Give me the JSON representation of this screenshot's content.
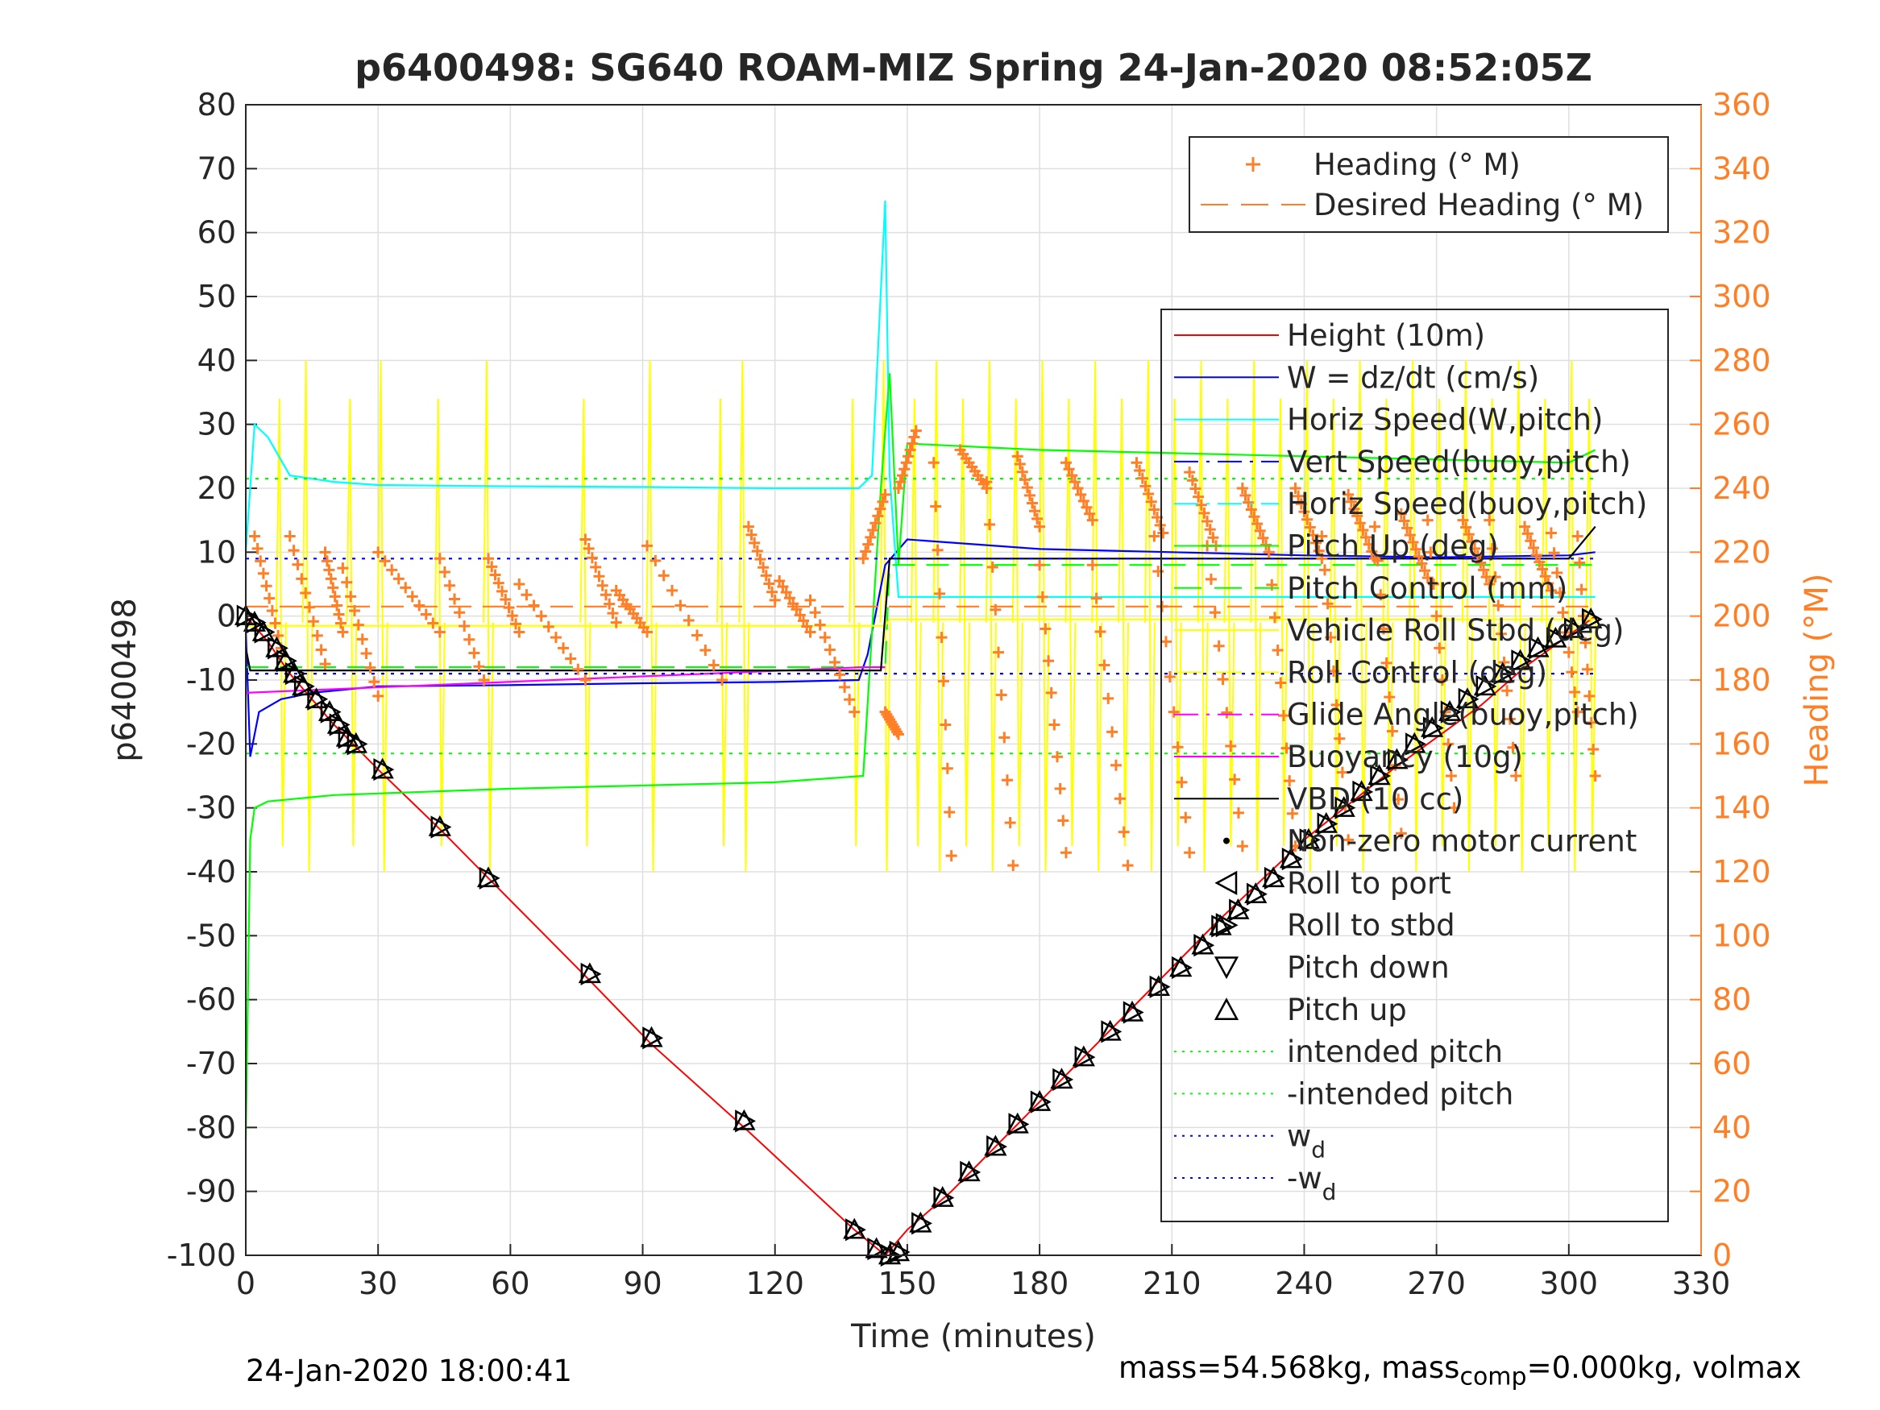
{
  "chart_data": {
    "type": "line",
    "title": "p6400498: SG640 ROAM-MIZ Spring 24-Jan-2020 08:52:05Z",
    "xlabel": "Time (minutes)",
    "ylabel": "p6400498",
    "y2label": "Heading (°M)",
    "xlim": [
      0,
      330
    ],
    "ylim": [
      -100,
      80
    ],
    "y2lim": [
      0,
      360
    ],
    "xticks": [
      "0",
      "30",
      "60",
      "90",
      "120",
      "150",
      "180",
      "210",
      "240",
      "270",
      "300",
      "330"
    ],
    "yticks": [
      "-100",
      "-90",
      "-80",
      "-70",
      "-60",
      "-50",
      "-40",
      "-30",
      "-20",
      "-10",
      "0",
      "10",
      "20",
      "30",
      "40",
      "50",
      "60",
      "70",
      "80"
    ],
    "y2ticks": [
      "0",
      "20",
      "40",
      "60",
      "80",
      "100",
      "120",
      "140",
      "160",
      "180",
      "200",
      "220",
      "240",
      "260",
      "280",
      "300",
      "320",
      "340",
      "360"
    ],
    "grid": true,
    "colors": {
      "heading": "#ff7f27",
      "height": "#ff0000",
      "w": "#0000ff",
      "horiz_w": "#00ffff",
      "pitch": "#00ff00",
      "pitch_control": "#ffff00",
      "glide": "#ff00ff",
      "vbd": "#000000",
      "axis2": "#ff7f27"
    },
    "legend_top": [
      {
        "label": "Heading (° M)",
        "color": "#ff7f27",
        "style": "plus"
      },
      {
        "label": "Desired Heading (° M)",
        "color": "#ff7f27",
        "style": "dash"
      }
    ],
    "legend_main": [
      {
        "label": "Height (10m)",
        "color": "#ff0000",
        "style": "solid"
      },
      {
        "label": "W = dz/dt (cm/s)",
        "color": "#0000ff",
        "style": "solid"
      },
      {
        "label": "Horiz Speed(W,pitch)",
        "color": "#00ffff",
        "style": "solid"
      },
      {
        "label": "Vert Speed(buoy,pitch)",
        "color": "#0000ff",
        "style": "dashdot"
      },
      {
        "label": "Horiz Speed(buoy,pitch)",
        "color": "#00ffff",
        "style": "dashdot"
      },
      {
        "label": "Pitch Up (deg)",
        "color": "#00ff00",
        "style": "solid"
      },
      {
        "label": "Pitch Control (mm)",
        "color": "#00ff00",
        "style": "dash"
      },
      {
        "label": "Vehicle Roll Stbd (deg)",
        "color": "#ffff00",
        "style": "solid"
      },
      {
        "label": "Roll Control (deg)",
        "color": "#ffff00",
        "style": "dash"
      },
      {
        "label": "Glide Angle(buoy,pitch)",
        "color": "#ff00ff",
        "style": "dashdot"
      },
      {
        "label": "Buoyancy (10g)",
        "color": "#ff00ff",
        "style": "solid"
      },
      {
        "label": "VBD (10 cc)",
        "color": "#000000",
        "style": "solid"
      },
      {
        "label": "Non-zero motor current",
        "color": "#000000",
        "style": "dot"
      },
      {
        "label": "Roll to port",
        "color": "#000000",
        "style": "tri-left"
      },
      {
        "label": "Roll to stbd",
        "color": "#000000",
        "style": "tri-right"
      },
      {
        "label": "Pitch down",
        "color": "#000000",
        "style": "tri-down"
      },
      {
        "label": "Pitch up",
        "color": "#000000",
        "style": "tri-up"
      },
      {
        "label": "intended pitch",
        "color": "#00ff00",
        "style": "dotted"
      },
      {
        "label": "-intended pitch",
        "color": "#00ff00",
        "style": "dotted"
      },
      {
        "label": "w",
        "sub": "d",
        "color": "#0000ff",
        "style": "dotted"
      },
      {
        "label": "-w",
        "sub": "d",
        "color": "#0000ff",
        "style": "dotted"
      }
    ],
    "series": [
      {
        "name": "Height (10m)",
        "x": [
          0,
          5,
          10,
          20,
          30,
          45,
          55,
          78,
          92,
          113,
          138,
          145,
          150,
          160,
          180,
          200,
          220,
          240,
          260,
          280,
          290,
          300,
          306
        ],
        "y": [
          0,
          -4,
          -9,
          -17,
          -24,
          -34,
          -41,
          -57,
          -67,
          -80,
          -96,
          -100,
          -96,
          -90,
          -76,
          -62,
          -48,
          -35,
          -24,
          -14,
          -8,
          -3,
          0
        ]
      },
      {
        "name": "W = dz/dt (cm/s)",
        "x": [
          0,
          1,
          3,
          8,
          15,
          30,
          60,
          90,
          120,
          139,
          141,
          145,
          150,
          180,
          210,
          240,
          270,
          300,
          306
        ],
        "y": [
          -2,
          -22,
          -15,
          -13,
          -12,
          -11,
          -10.8,
          -10.5,
          -10.3,
          -10,
          -6,
          8,
          12,
          10.5,
          10,
          9.5,
          9.2,
          9.5,
          10
        ]
      },
      {
        "name": "Horiz Speed(W,pitch)",
        "x": [
          0,
          2,
          5,
          10,
          20,
          30,
          60,
          90,
          120,
          139,
          142,
          145,
          146,
          148,
          150,
          180,
          210,
          240,
          270,
          300,
          306
        ],
        "y": [
          10,
          30,
          28,
          22,
          21,
          20.5,
          20.3,
          20.2,
          20,
          20,
          22,
          65,
          22,
          3,
          3,
          3,
          3,
          3,
          3,
          3,
          3
        ]
      },
      {
        "name": "Pitch Up (deg)",
        "x": [
          0,
          1,
          2,
          5,
          20,
          60,
          90,
          120,
          140,
          144,
          146,
          148,
          150,
          180,
          210,
          240,
          270,
          300,
          306
        ],
        "y": [
          -82,
          -35,
          -30,
          -29,
          -28,
          -27,
          -26.5,
          -26,
          -25,
          20,
          38,
          8,
          27,
          26,
          25.5,
          25,
          24.5,
          24,
          26
        ]
      },
      {
        "name": "Pitch Control (mm)",
        "x": [
          0,
          145,
          146,
          306
        ],
        "y": [
          -8,
          -8,
          8,
          8
        ]
      },
      {
        "name": "Vehicle Roll Stbd (deg)",
        "x": [
          0,
          145,
          146,
          306
        ],
        "y": [
          -1.5,
          -1.5,
          -0.5,
          -0.5
        ]
      },
      {
        "name": "Buoyancy (10g)",
        "x": [
          0,
          140,
          145
        ],
        "y": [
          -12,
          -8,
          -8
        ]
      },
      {
        "name": "VBD (10 cc)",
        "x": [
          0,
          1,
          2,
          10,
          30,
          60,
          90,
          120,
          139,
          144,
          146,
          300,
          306
        ],
        "y": [
          -5,
          -8.5,
          -8.5,
          -8.5,
          -8.5,
          -8.5,
          -8.5,
          -8.5,
          -8.5,
          -8.5,
          9,
          9,
          14
        ]
      },
      {
        "name": "Desired Heading (° M)",
        "axis": "right",
        "x": [
          0,
          306
        ],
        "y": [
          203,
          203
        ]
      },
      {
        "name": "intended pitch",
        "x": [
          0,
          306
        ],
        "y": [
          21.5,
          21.5
        ]
      },
      {
        "name": "-intended pitch",
        "x": [
          0,
          306
        ],
        "y": [
          -21.5,
          -21.5
        ]
      },
      {
        "name": "w",
        "sub": "d",
        "x": [
          0,
          306
        ],
        "y": [
          9,
          9
        ]
      },
      {
        "name": "-w",
        "sub": "d",
        "x": [
          0,
          306
        ],
        "y": [
          -9,
          -9
        ]
      }
    ],
    "heading_cycles": [
      {
        "x0": 2,
        "x1": 8,
        "y0": 225,
        "y1": 190
      },
      {
        "x0": 10,
        "x1": 18,
        "y0": 225,
        "y1": 185
      },
      {
        "x0": 18,
        "x1": 22,
        "y0": 220,
        "y1": 195
      },
      {
        "x0": 22,
        "x1": 30,
        "y0": 215,
        "y1": 175
      },
      {
        "x0": 30,
        "x1": 44,
        "y0": 220,
        "y1": 195
      },
      {
        "x0": 44,
        "x1": 54,
        "y0": 218,
        "y1": 180
      },
      {
        "x0": 55,
        "x1": 62,
        "y0": 218,
        "y1": 195
      },
      {
        "x0": 62,
        "x1": 77,
        "y0": 210,
        "y1": 180
      },
      {
        "x0": 77,
        "x1": 84,
        "y0": 224,
        "y1": 198
      },
      {
        "x0": 84,
        "x1": 91,
        "y0": 208,
        "y1": 195
      },
      {
        "x0": 91,
        "x1": 108,
        "y0": 222,
        "y1": 180
      },
      {
        "x0": 114,
        "x1": 120,
        "y0": 228,
        "y1": 205
      },
      {
        "x0": 121,
        "x1": 128,
        "y0": 211,
        "y1": 195
      },
      {
        "x0": 128,
        "x1": 138,
        "y0": 205,
        "y1": 170
      },
      {
        "x0": 140,
        "x1": 145,
        "y0": 218,
        "y1": 238
      },
      {
        "x0": 145,
        "x1": 148,
        "y0": 170,
        "y1": 163
      },
      {
        "x0": 148,
        "x1": 152,
        "y0": 240,
        "y1": 258
      },
      {
        "x0": 156,
        "x1": 160,
        "y0": 248,
        "y1": 125
      },
      {
        "x0": 162,
        "x1": 168,
        "y0": 252,
        "y1": 240
      },
      {
        "x0": 168,
        "x1": 174,
        "y0": 242,
        "y1": 122
      },
      {
        "x0": 175,
        "x1": 180,
        "y0": 250,
        "y1": 228
      },
      {
        "x0": 180,
        "x1": 186,
        "y0": 216,
        "y1": 126
      },
      {
        "x0": 186,
        "x1": 192,
        "y0": 248,
        "y1": 230
      },
      {
        "x0": 192,
        "x1": 200,
        "y0": 216,
        "y1": 122
      },
      {
        "x0": 202,
        "x1": 208,
        "y0": 248,
        "y1": 226
      },
      {
        "x0": 206,
        "x1": 214,
        "y0": 225,
        "y1": 126
      },
      {
        "x0": 214,
        "x1": 220,
        "y0": 245,
        "y1": 222
      },
      {
        "x0": 218,
        "x1": 226,
        "y0": 222,
        "y1": 128
      },
      {
        "x0": 226,
        "x1": 232,
        "y0": 240,
        "y1": 220
      },
      {
        "x0": 232,
        "x1": 238,
        "y0": 220,
        "y1": 128
      },
      {
        "x0": 238,
        "x1": 244,
        "y0": 240,
        "y1": 218
      },
      {
        "x0": 244,
        "x1": 250,
        "y0": 225,
        "y1": 130
      },
      {
        "x0": 250,
        "x1": 256,
        "y0": 238,
        "y1": 218
      },
      {
        "x0": 256,
        "x1": 262,
        "y0": 228,
        "y1": 132
      },
      {
        "x0": 262,
        "x1": 268,
        "y0": 232,
        "y1": 212
      },
      {
        "x0": 268,
        "x1": 274,
        "y0": 230,
        "y1": 140
      },
      {
        "x0": 276,
        "x1": 282,
        "y0": 230,
        "y1": 210
      },
      {
        "x0": 282,
        "x1": 288,
        "y0": 230,
        "y1": 150
      },
      {
        "x0": 290,
        "x1": 296,
        "y0": 228,
        "y1": 208
      },
      {
        "x0": 296,
        "x1": 302,
        "y0": 226,
        "y1": 170
      },
      {
        "x0": 302,
        "x1": 306,
        "y0": 225,
        "y1": 150
      }
    ],
    "roll_spikes_minutes": [
      8,
      14,
      24,
      31,
      44,
      55,
      77,
      92,
      108,
      113,
      138,
      145,
      152,
      157,
      163,
      169,
      175,
      181,
      187,
      193,
      199,
      205,
      211,
      217,
      223,
      229,
      235,
      241,
      247,
      253,
      259,
      265,
      271,
      277,
      283,
      289,
      295,
      301,
      305
    ],
    "pitch_markers": [
      {
        "x": 0,
        "y": 0
      },
      {
        "x": 2,
        "y": -1
      },
      {
        "x": 4,
        "y": -2.5
      },
      {
        "x": 7,
        "y": -5
      },
      {
        "x": 9,
        "y": -7
      },
      {
        "x": 11,
        "y": -9
      },
      {
        "x": 13,
        "y": -11
      },
      {
        "x": 16,
        "y": -13
      },
      {
        "x": 19,
        "y": -15
      },
      {
        "x": 21,
        "y": -17
      },
      {
        "x": 23,
        "y": -19
      },
      {
        "x": 25,
        "y": -20
      },
      {
        "x": 31,
        "y": -24
      },
      {
        "x": 44,
        "y": -33
      },
      {
        "x": 55,
        "y": -41
      },
      {
        "x": 78,
        "y": -56
      },
      {
        "x": 92,
        "y": -66
      },
      {
        "x": 113,
        "y": -79
      },
      {
        "x": 138,
        "y": -96
      },
      {
        "x": 143,
        "y": -99
      },
      {
        "x": 146,
        "y": -100
      },
      {
        "x": 148,
        "y": -99.5
      },
      {
        "x": 153,
        "y": -95
      },
      {
        "x": 158,
        "y": -91
      },
      {
        "x": 164,
        "y": -87
      },
      {
        "x": 170,
        "y": -83
      },
      {
        "x": 175,
        "y": -79.5
      },
      {
        "x": 180,
        "y": -76
      },
      {
        "x": 185,
        "y": -72.5
      },
      {
        "x": 190,
        "y": -69
      },
      {
        "x": 196,
        "y": -65
      },
      {
        "x": 201,
        "y": -62
      },
      {
        "x": 207,
        "y": -58
      },
      {
        "x": 212,
        "y": -55
      },
      {
        "x": 217,
        "y": -51.5
      },
      {
        "x": 221,
        "y": -48.5
      },
      {
        "x": 225,
        "y": -46
      },
      {
        "x": 229,
        "y": -43.5
      },
      {
        "x": 233,
        "y": -41
      },
      {
        "x": 237,
        "y": -38
      },
      {
        "x": 241,
        "y": -35
      },
      {
        "x": 245,
        "y": -32.5
      },
      {
        "x": 249,
        "y": -30
      },
      {
        "x": 253,
        "y": -27.5
      },
      {
        "x": 257,
        "y": -25
      },
      {
        "x": 261,
        "y": -22.5
      },
      {
        "x": 265,
        "y": -20
      },
      {
        "x": 269,
        "y": -17.5
      },
      {
        "x": 273,
        "y": -15
      },
      {
        "x": 277,
        "y": -13
      },
      {
        "x": 281,
        "y": -11
      },
      {
        "x": 285,
        "y": -9
      },
      {
        "x": 289,
        "y": -7
      },
      {
        "x": 293,
        "y": -5
      },
      {
        "x": 297,
        "y": -3.5
      },
      {
        "x": 301,
        "y": -2
      },
      {
        "x": 305,
        "y": -0.5
      }
    ]
  },
  "footer": {
    "date": "24-Jan-2020 18:00:41",
    "mass_prefix": "mass=54.568kg, mass",
    "mass_sub": "comp",
    "mass_suffix": "=0.000kg, volmax"
  }
}
